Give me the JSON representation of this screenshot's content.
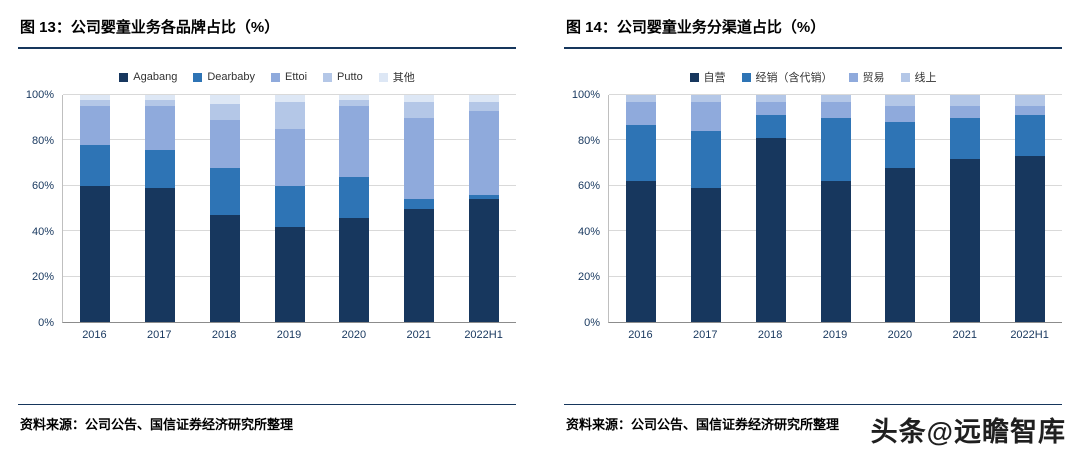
{
  "panels": [
    {
      "title": "图 13：公司婴童业务各品牌占比（%）",
      "source": "资料来源：公司公告、国信证券经济研究所整理"
    },
    {
      "title": "图 14：公司婴童业务分渠道占比（%）",
      "source": "资料来源：公司公告、国信证券经济研究所整理"
    }
  ],
  "watermark": "头条@远瞻智库",
  "chart_data": [
    {
      "type": "bar",
      "stacked": true,
      "title": "图 13：公司婴童业务各品牌占比（%）",
      "categories": [
        "2016",
        "2017",
        "2018",
        "2019",
        "2020",
        "2021",
        "2022H1"
      ],
      "series": [
        {
          "name": "Agabang",
          "color": "#17375e",
          "values": [
            60,
            59,
            47,
            42,
            46,
            50,
            54
          ]
        },
        {
          "name": "Dearbaby",
          "color": "#2e74b5",
          "values": [
            18,
            17,
            21,
            18,
            18,
            4,
            2
          ]
        },
        {
          "name": "Ettoi",
          "color": "#8faadc",
          "values": [
            17,
            19,
            21,
            25,
            31,
            36,
            37
          ]
        },
        {
          "name": "Putto",
          "color": "#b4c7e7",
          "values": [
            3,
            3,
            7,
            12,
            3,
            7,
            4
          ]
        },
        {
          "name": "其他",
          "color": "#dde7f5",
          "values": [
            2,
            2,
            4,
            3,
            2,
            3,
            3
          ]
        }
      ],
      "ylim": [
        0,
        100
      ],
      "yticks": [
        0,
        20,
        40,
        60,
        80,
        100
      ],
      "ytick_suffix": "%",
      "grid": true,
      "legend_position": "top"
    },
    {
      "type": "bar",
      "stacked": true,
      "title": "图 14：公司婴童业务分渠道占比（%）",
      "categories": [
        "2016",
        "2017",
        "2018",
        "2019",
        "2020",
        "2021",
        "2022H1"
      ],
      "series": [
        {
          "name": "自营",
          "color": "#17375e",
          "values": [
            62,
            59,
            81,
            62,
            68,
            72,
            73
          ]
        },
        {
          "name": "经销（含代销）",
          "color": "#2e74b5",
          "values": [
            25,
            25,
            10,
            28,
            20,
            18,
            18
          ]
        },
        {
          "name": "贸易",
          "color": "#8faadc",
          "values": [
            10,
            13,
            6,
            7,
            7,
            5,
            4
          ]
        },
        {
          "name": "线上",
          "color": "#b4c7e7",
          "values": [
            3,
            3,
            3,
            3,
            5,
            5,
            5
          ]
        }
      ],
      "ylim": [
        0,
        100
      ],
      "yticks": [
        0,
        20,
        40,
        60,
        80,
        100
      ],
      "ytick_suffix": "%",
      "grid": true,
      "legend_position": "top"
    }
  ]
}
